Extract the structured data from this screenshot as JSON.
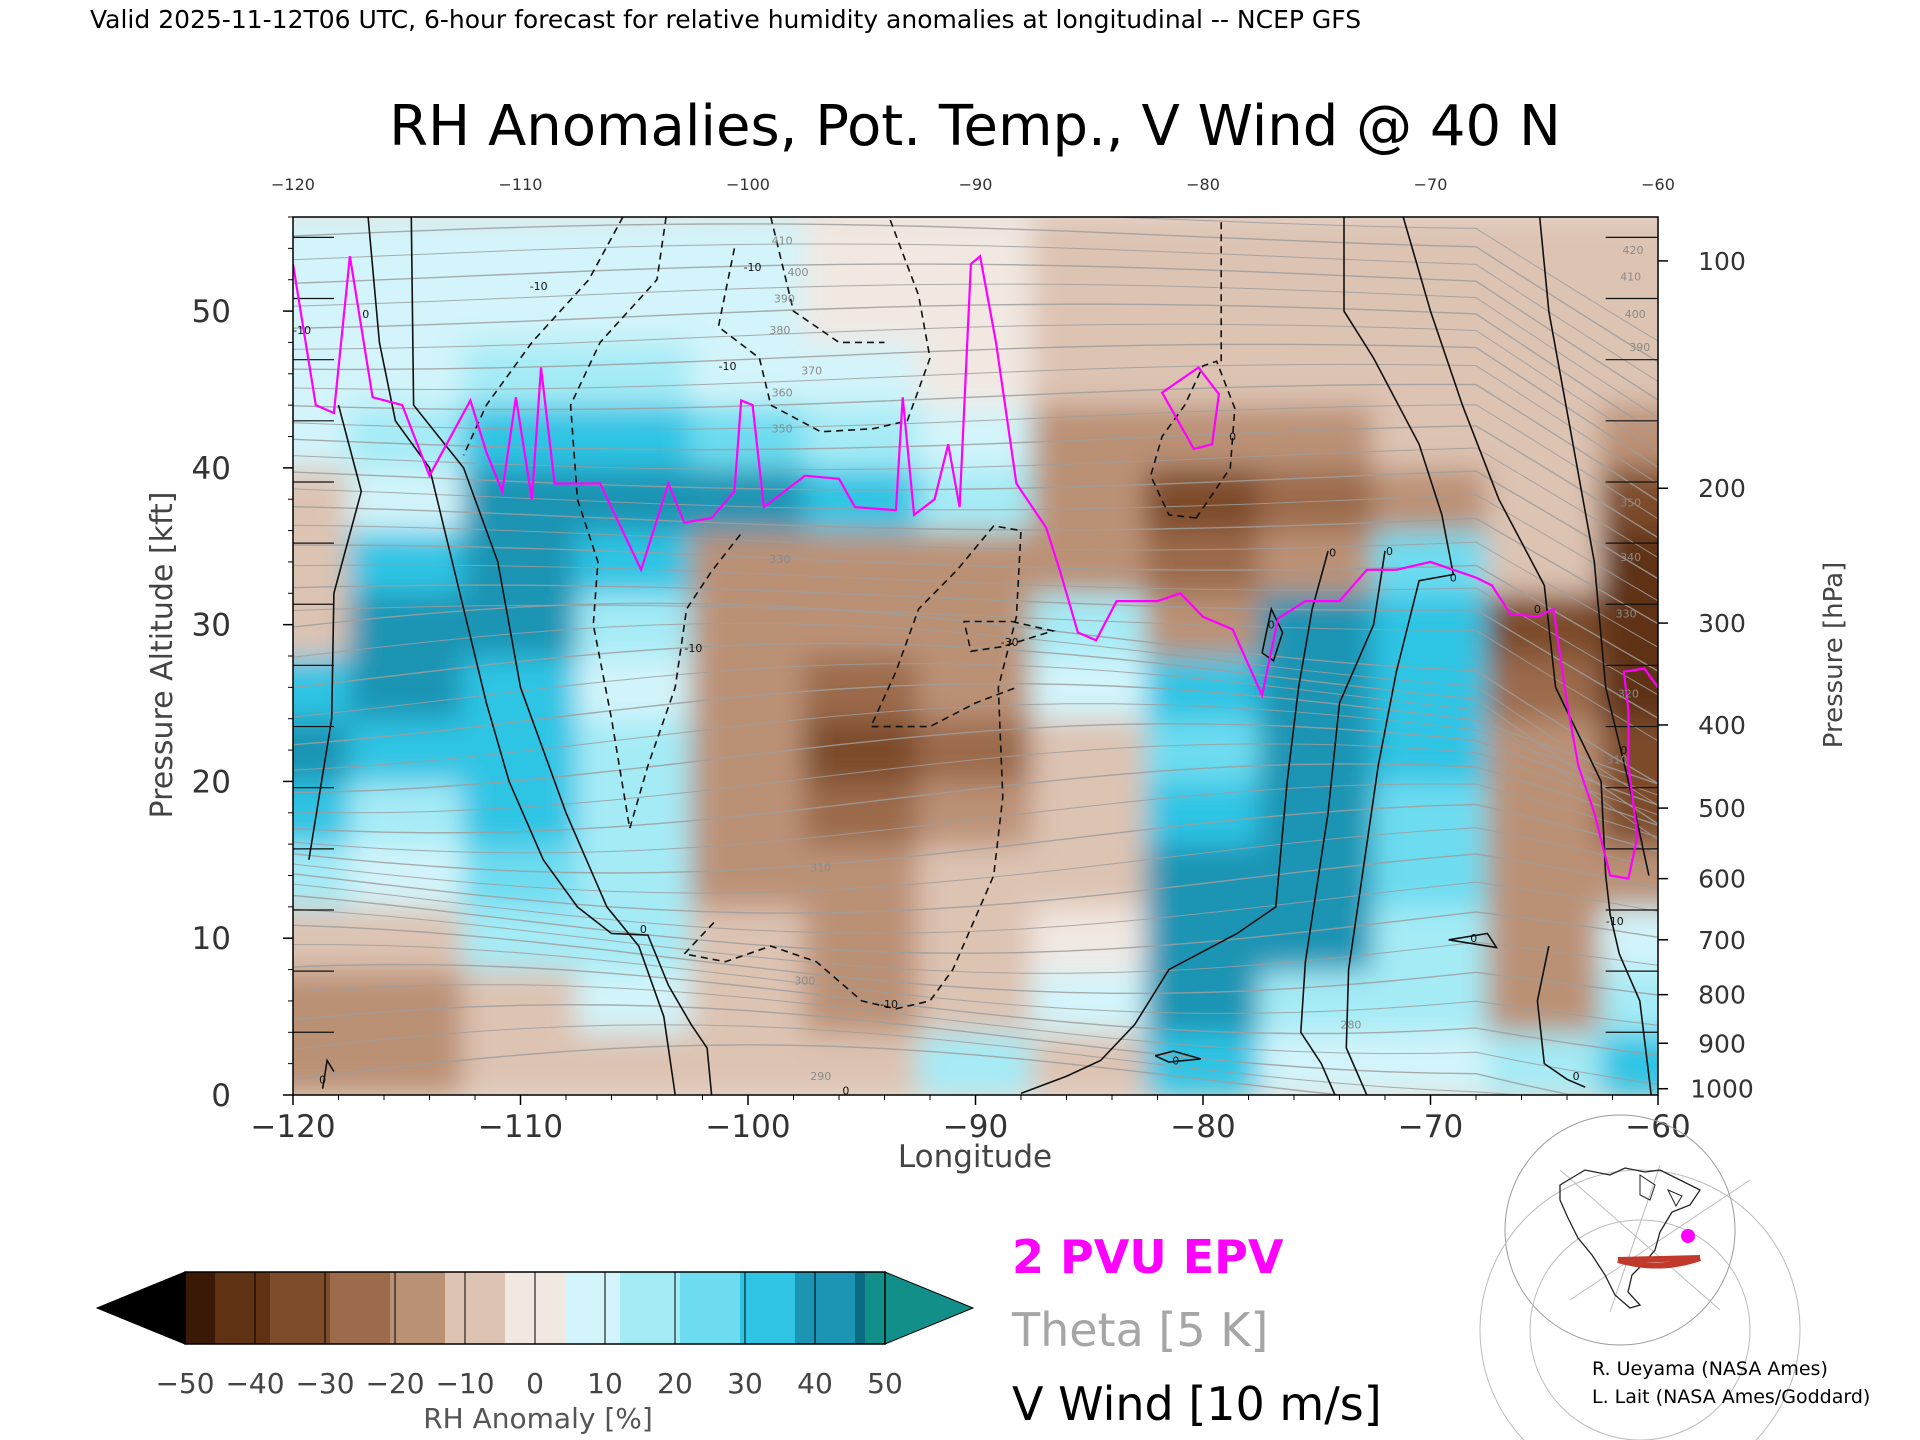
{
  "header": {
    "valid_line": "Valid 2025-11-12T06 UTC, 6-hour forecast for relative humidity anomalies at longitudinal -- NCEP GFS",
    "title": "RH Anomalies, Pot. Temp., V Wind @ 40 N"
  },
  "chart_data": {
    "type": "heatmap",
    "title": "RH Anomalies, Pot. Temp., V Wind @ 40 N",
    "xlabel": "Longitude",
    "ylabel": "Pressure Altitude [kft]",
    "y2label": "Pressure [hPa]",
    "xlim": [
      -120,
      -60
    ],
    "ylim": [
      0,
      56
    ],
    "x_ticks": [
      "-120",
      "-110",
      "-100",
      "-90",
      "-80",
      "-70",
      "-60"
    ],
    "y_ticks": [
      "0",
      "10",
      "20",
      "30",
      "40",
      "50"
    ],
    "pressure_ticks": [
      {
        "label": "1000",
        "kft": 0.4
      },
      {
        "label": "900",
        "kft": 3.3
      },
      {
        "label": "800",
        "kft": 6.4
      },
      {
        "label": "700",
        "kft": 9.9
      },
      {
        "label": "600",
        "kft": 13.8
      },
      {
        "label": "500",
        "kft": 18.3
      },
      {
        "label": "400",
        "kft": 23.6
      },
      {
        "label": "300",
        "kft": 30.1
      },
      {
        "label": "200",
        "kft": 38.7
      },
      {
        "label": "100",
        "kft": 53.2
      }
    ],
    "colorbar": {
      "label": "RH Anomaly [%]",
      "ticks": [
        "-50",
        "-40",
        "-30",
        "-20",
        "-10",
        "0",
        "10",
        "20",
        "30",
        "40",
        "50"
      ],
      "colors": [
        "#3a1a06",
        "#5e3213",
        "#7d4c2a",
        "#9b6b4c",
        "#bb9176",
        "#ddc3b2",
        "#f1e8e2",
        "#d2f4fa",
        "#a5ebf6",
        "#6ddcf0",
        "#2fc4e4",
        "#1c94b4",
        "#0a6c80"
      ],
      "under_color": "#000000",
      "over_color": "#138f8a"
    },
    "rh_anomaly_grid": {
      "lon": [
        -120,
        -115,
        -110,
        -105,
        -100,
        -95,
        -90,
        -85,
        -80,
        -75,
        -70,
        -65,
        -60
      ],
      "kft": [
        2,
        6,
        10,
        14,
        18,
        22,
        26,
        30,
        34,
        38,
        42,
        46,
        50,
        54
      ],
      "values": [
        [
          -15,
          -20,
          -10,
          -5,
          -10,
          -5,
          20,
          -10,
          30,
          10,
          5,
          20,
          30
        ],
        [
          -20,
          -15,
          -5,
          10,
          -10,
          -15,
          -5,
          10,
          40,
          20,
          20,
          -15,
          20
        ],
        [
          -10,
          -5,
          15,
          20,
          -10,
          -20,
          -10,
          0,
          45,
          40,
          20,
          -20,
          10
        ],
        [
          20,
          10,
          25,
          15,
          -15,
          -20,
          -10,
          -10,
          40,
          45,
          25,
          -20,
          -20
        ],
        [
          30,
          20,
          30,
          20,
          -15,
          -25,
          -15,
          -10,
          35,
          40,
          25,
          -20,
          -30
        ],
        [
          40,
          30,
          30,
          20,
          -20,
          -30,
          -25,
          -5,
          25,
          40,
          30,
          -20,
          -35
        ],
        [
          30,
          40,
          35,
          10,
          -15,
          -25,
          -20,
          10,
          30,
          45,
          30,
          -25,
          -40
        ],
        [
          -10,
          40,
          45,
          15,
          -15,
          -20,
          -20,
          15,
          -20,
          40,
          30,
          -30,
          -40
        ],
        [
          -5,
          35,
          45,
          35,
          -15,
          -20,
          -15,
          -20,
          -25,
          -20,
          25,
          -10,
          -40
        ],
        [
          -5,
          10,
          40,
          40,
          45,
          35,
          20,
          -20,
          -30,
          -25,
          -20,
          -10,
          -30
        ],
        [
          10,
          20,
          30,
          30,
          25,
          20,
          10,
          -15,
          -20,
          -15,
          -10,
          -5,
          -15
        ],
        [
          5,
          10,
          15,
          15,
          10,
          5,
          0,
          -10,
          -10,
          -5,
          -5,
          -5,
          -10
        ],
        [
          5,
          5,
          10,
          5,
          5,
          0,
          0,
          -5,
          -5,
          -5,
          -5,
          -5,
          -5
        ],
        [
          5,
          5,
          5,
          5,
          5,
          0,
          0,
          -5,
          -5,
          -5,
          -5,
          -5,
          -5
        ]
      ]
    },
    "epv_2pvu": {
      "name": "2 PVU EPV",
      "color": "#ff00ff",
      "points": [
        [
          -120,
          53
        ],
        [
          -119,
          44
        ],
        [
          -118.2,
          43.5
        ],
        [
          -117.5,
          53.5
        ],
        [
          -116.5,
          44.5
        ],
        [
          -115.2,
          44
        ],
        [
          -114,
          39.5
        ],
        [
          -112.2,
          44.3
        ],
        [
          -111.5,
          41
        ],
        [
          -110.8,
          38.5
        ],
        [
          -110.2,
          44.5
        ],
        [
          -109.5,
          38
        ],
        [
          -109.1,
          46.4
        ],
        [
          -108.5,
          39
        ],
        [
          -106.5,
          39
        ],
        [
          -104.7,
          33.5
        ],
        [
          -103.5,
          39
        ],
        [
          -102.8,
          36.5
        ],
        [
          -101.6,
          36.8
        ],
        [
          -100.6,
          38.5
        ],
        [
          -100.3,
          44.3
        ],
        [
          -99.8,
          44
        ],
        [
          -99.3,
          37.5
        ],
        [
          -97.5,
          39.5
        ],
        [
          -96,
          39.3
        ],
        [
          -95.3,
          37.5
        ],
        [
          -93.5,
          37.3
        ],
        [
          -93.2,
          44.5
        ],
        [
          -92.7,
          37
        ],
        [
          -91.8,
          38
        ],
        [
          -91.2,
          41.5
        ],
        [
          -90.7,
          37.5
        ],
        [
          -90.2,
          53
        ],
        [
          -89.8,
          53.5
        ],
        [
          -89.1,
          48
        ],
        [
          -88.2,
          39
        ],
        [
          -86.9,
          36.2
        ],
        [
          -86.3,
          33.5
        ],
        [
          -85.5,
          29.5
        ],
        [
          -84.7,
          29
        ],
        [
          -83.8,
          31.5
        ],
        [
          -82,
          31.5
        ],
        [
          -81,
          32
        ],
        [
          -80,
          30.5
        ],
        [
          -78.7,
          29.7
        ],
        [
          -77.4,
          25.5
        ],
        [
          -76.7,
          30.4
        ],
        [
          -75.5,
          31.5
        ],
        [
          -74,
          31.5
        ],
        [
          -72.8,
          33.5
        ],
        [
          -71.5,
          33.5
        ],
        [
          -70,
          34
        ],
        [
          -69,
          33.5
        ],
        [
          -68,
          33
        ],
        [
          -67.3,
          32.5
        ],
        [
          -66.5,
          30.7
        ],
        [
          -65.3,
          30.5
        ],
        [
          -64.6,
          31
        ],
        [
          -64,
          25
        ],
        [
          -63.5,
          21
        ],
        [
          -62.8,
          18
        ],
        [
          -62.1,
          14
        ],
        [
          -61.3,
          13.8
        ],
        [
          -60.9,
          16.5
        ],
        [
          -61.3,
          21
        ],
        [
          -61.3,
          24.5
        ],
        [
          -61.5,
          27
        ],
        [
          -60.6,
          27.2
        ],
        [
          -60,
          26
        ]
      ],
      "loop": [
        [
          -81.8,
          44.8
        ],
        [
          -80.2,
          46.4
        ],
        [
          -79.3,
          44.7
        ],
        [
          -79.6,
          41.5
        ],
        [
          -80.4,
          41.2
        ]
      ]
    },
    "theta": {
      "name": "Theta [5 K]",
      "color": "#9e9e9e",
      "labels": [
        {
          "text": "290",
          "lon": -96.8,
          "kft": 1.2
        },
        {
          "text": "300",
          "lon": -97.5,
          "kft": 7.3
        },
        {
          "text": "310",
          "lon": -96.8,
          "kft": 14.5
        },
        {
          "text": "330",
          "lon": -98.6,
          "kft": 34.2
        },
        {
          "text": "350",
          "lon": -98.5,
          "kft": 42.5
        },
        {
          "text": "360",
          "lon": -98.5,
          "kft": 44.8
        },
        {
          "text": "370",
          "lon": -97.2,
          "kft": 46.2
        },
        {
          "text": "380",
          "lon": -98.6,
          "kft": 48.8
        },
        {
          "text": "390",
          "lon": -98.4,
          "kft": 50.8
        },
        {
          "text": "400",
          "lon": -97.8,
          "kft": 52.5
        },
        {
          "text": "410",
          "lon": -98.5,
          "kft": 54.5
        },
        {
          "text": "280",
          "lon": -73.5,
          "kft": 4.5
        },
        {
          "text": "330",
          "lon": -61.4,
          "kft": 30.7
        },
        {
          "text": "340",
          "lon": -61.2,
          "kft": 34.3
        },
        {
          "text": "350",
          "lon": -61.2,
          "kft": 37.8
        },
        {
          "text": "320",
          "lon": -61.3,
          "kft": 25.6
        },
        {
          "text": "310",
          "lon": -61.8,
          "kft": 21.4
        },
        {
          "text": "390",
          "lon": -60.8,
          "kft": 47.7
        },
        {
          "text": "400",
          "lon": -61,
          "kft": 49.8
        },
        {
          "text": "410",
          "lon": -61.2,
          "kft": 52.2
        },
        {
          "text": "420",
          "lon": -61.1,
          "kft": 53.9
        }
      ]
    },
    "v_wind": {
      "name": "V Wind [10 m/s]",
      "zero_line_label": "0",
      "labels": [
        {
          "text": "0",
          "lon": -116.8,
          "kft": 49.8
        },
        {
          "text": "-10",
          "lon": -119.6,
          "kft": 48.8
        },
        {
          "text": "-10",
          "lon": -109.2,
          "kft": 51.6
        },
        {
          "text": "-10",
          "lon": -99.8,
          "kft": 52.8
        },
        {
          "text": "-10",
          "lon": -100.9,
          "kft": 46.5
        },
        {
          "text": "0",
          "lon": -104.6,
          "kft": 10.6
        },
        {
          "text": "-10",
          "lon": -102.4,
          "kft": 28.5
        },
        {
          "text": "-30",
          "lon": -88.5,
          "kft": 28.9
        },
        {
          "text": "-10",
          "lon": -93.8,
          "kft": 5.8
        },
        {
          "text": "0",
          "lon": -95.7,
          "kft": 0.3
        },
        {
          "text": "0",
          "lon": -78.7,
          "kft": 42
        },
        {
          "text": "0",
          "lon": -74.3,
          "kft": 34.6
        },
        {
          "text": "0",
          "lon": -71.8,
          "kft": 34.7
        },
        {
          "text": "0",
          "lon": -69,
          "kft": 33
        },
        {
          "text": "0",
          "lon": -65.3,
          "kft": 31
        },
        {
          "text": "0",
          "lon": -77,
          "kft": 30
        },
        {
          "text": "0",
          "lon": -61.5,
          "kft": 22
        },
        {
          "text": "-10",
          "lon": -61.9,
          "kft": 11.1
        },
        {
          "text": "0",
          "lon": -63.6,
          "kft": 1.2
        },
        {
          "text": "0",
          "lon": -68.1,
          "kft": 10
        },
        {
          "text": "0",
          "lon": -118.7,
          "kft": 1
        },
        {
          "text": "0",
          "lon": -81.2,
          "kft": 2.2
        }
      ]
    },
    "legend": {
      "epv": "2 PVU EPV",
      "theta": "Theta [5 K]",
      "wind": "V Wind [10 m/s]"
    }
  },
  "credits": {
    "line1": "R. Ueyama (NASA Ames)",
    "line2": "L. Lait (NASA Ames/Goddard)"
  },
  "colors": {
    "epv": "#ff00ff",
    "theta_legend": "#a6a6a6",
    "cross_section_line": "#c0392b"
  }
}
